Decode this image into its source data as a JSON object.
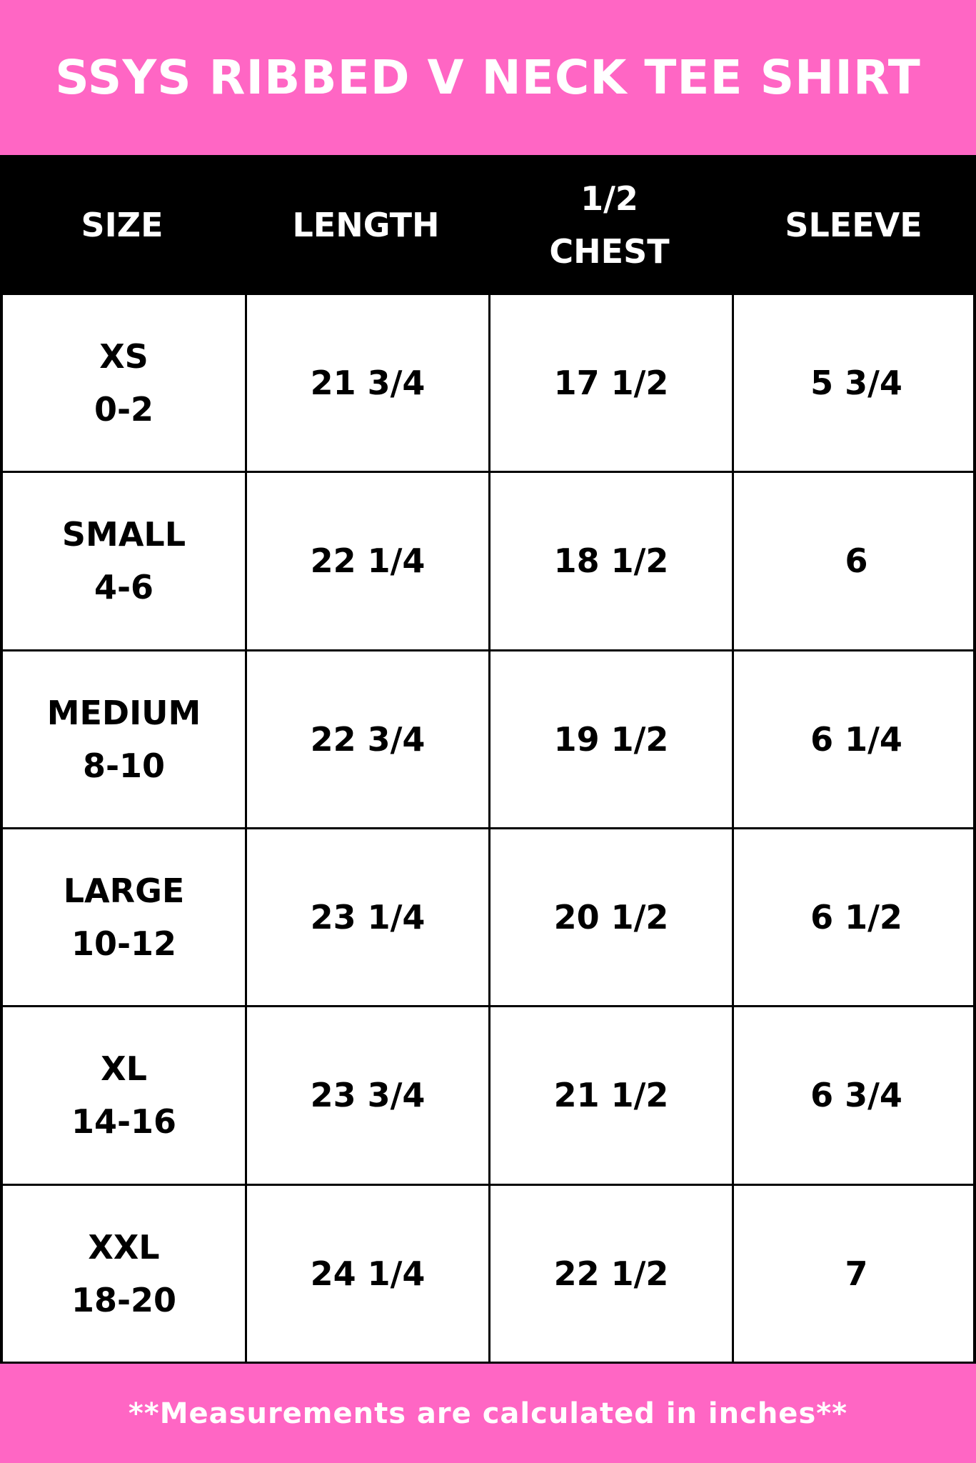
{
  "title": "SSYS RIBBED V NECK TEE SHIRT",
  "colors": {
    "accent": "#ff66c4",
    "header_bg": "#000000",
    "text": "#000000"
  },
  "columns": [
    "SIZE",
    "LENGTH",
    "1/2\nCHEST",
    "SLEEVE"
  ],
  "rows": [
    {
      "size": "XS",
      "range": "0-2",
      "length": "21 3/4",
      "chest": "17 1/2",
      "sleeve": "5 3/4"
    },
    {
      "size": "SMALL",
      "range": "4-6",
      "length": "22 1/4",
      "chest": "18 1/2",
      "sleeve": "6"
    },
    {
      "size": "MEDIUM",
      "range": "8-10",
      "length": "22 3/4",
      "chest": "19 1/2",
      "sleeve": "6 1/4"
    },
    {
      "size": "LARGE",
      "range": "10-12",
      "length": "23 1/4",
      "chest": "20 1/2",
      "sleeve": "6 1/2"
    },
    {
      "size": "XL",
      "range": "14-16",
      "length": "23 3/4",
      "chest": "21 1/2",
      "sleeve": "6 3/4"
    },
    {
      "size": "XXL",
      "range": "18-20",
      "length": "24 1/4",
      "chest": "22 1/2",
      "sleeve": "7"
    }
  ],
  "footer_note": "**Measurements are calculated in inches**"
}
